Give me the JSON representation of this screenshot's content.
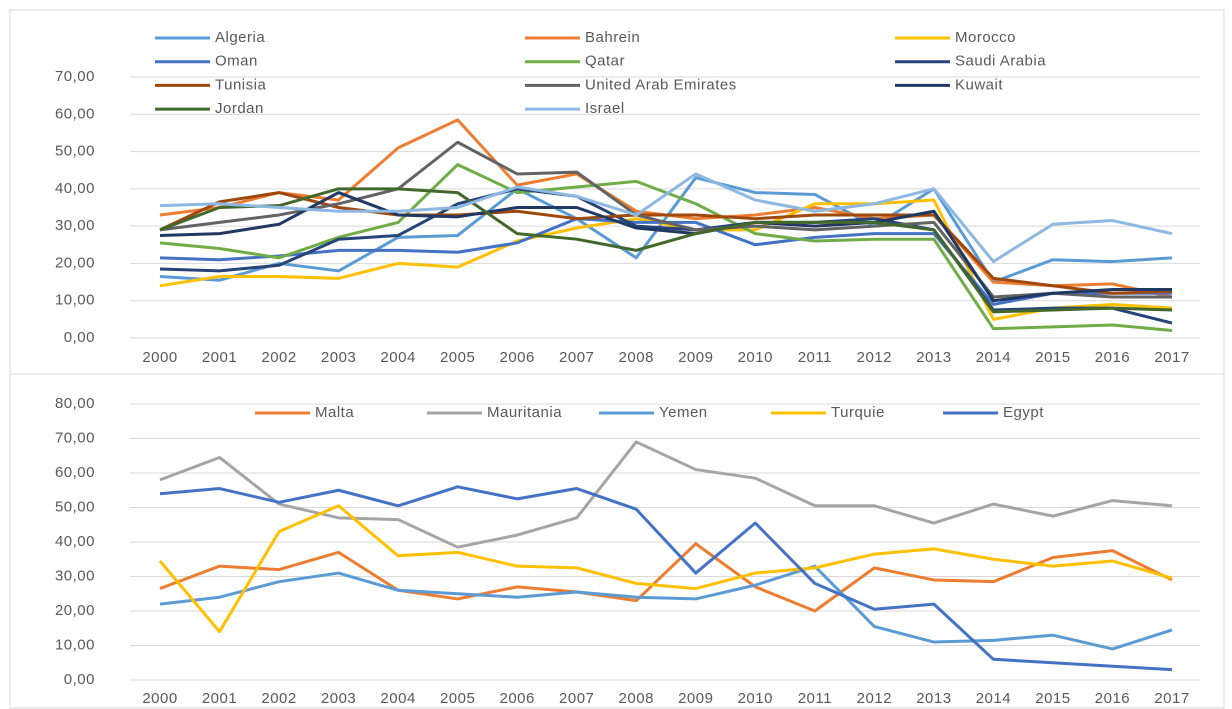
{
  "chart_data": [
    {
      "type": "line",
      "categories": [
        "2000",
        "2001",
        "2002",
        "2003",
        "2004",
        "2005",
        "2006",
        "2007",
        "2008",
        "2009",
        "2010",
        "2011",
        "2012",
        "2013",
        "2014",
        "2015",
        "2016",
        "2017"
      ],
      "ylim": [
        0,
        70
      ],
      "yticks": [
        {
          "value": 0,
          "label": "0,00"
        },
        {
          "value": 10,
          "label": "10,00"
        },
        {
          "value": 20,
          "label": "20,00"
        },
        {
          "value": 30,
          "label": "30,00"
        },
        {
          "value": 40,
          "label": "40,00"
        },
        {
          "value": 50,
          "label": "50,00"
        },
        {
          "value": 60,
          "label": "60,00"
        },
        {
          "value": 70,
          "label": "70,00"
        }
      ],
      "legend": "top",
      "series": [
        {
          "name": "Algeria",
          "color": "#5b9bd5",
          "values": [
            16.5,
            15.5,
            20,
            18,
            27,
            27.5,
            40,
            32,
            21.5,
            43,
            39,
            38.5,
            30,
            40,
            15,
            21,
            20.5,
            21.5
          ]
        },
        {
          "name": "Bahrein",
          "color": "#ed7d31",
          "values": [
            33,
            35,
            39,
            37,
            51,
            58.5,
            41,
            44,
            34,
            32,
            33,
            35,
            32,
            33,
            15,
            14,
            14.5,
            11
          ]
        },
        {
          "name": "Morocco",
          "color": "#ffc000",
          "values": [
            14,
            16.5,
            16.5,
            16,
            20,
            19,
            26,
            29.5,
            32,
            29,
            29,
            36,
            36,
            37,
            5,
            8,
            9,
            8
          ]
        },
        {
          "name": "Oman",
          "color": "#4472c4",
          "values": [
            21.5,
            21,
            22,
            23.5,
            23.5,
            23,
            25.5,
            32,
            31,
            31,
            25,
            27,
            28,
            28,
            9,
            12,
            12,
            12
          ]
        },
        {
          "name": "Qatar",
          "color": "#70ad47",
          "values": [
            25.5,
            24,
            21.5,
            27,
            31,
            46.5,
            39,
            40.5,
            42,
            36,
            28,
            26,
            26.5,
            26.5,
            2.5,
            3,
            3.5,
            2
          ]
        },
        {
          "name": "Saudi Arabia",
          "color": "#264478",
          "values": [
            18.5,
            18,
            19.5,
            26.5,
            27.5,
            36,
            40,
            38,
            30,
            29,
            31,
            31,
            32,
            29,
            7.5,
            8,
            8,
            4
          ]
        },
        {
          "name": "Tunisia",
          "color": "#9e480e",
          "values": [
            29,
            36.5,
            39,
            35,
            33,
            33,
            34,
            32,
            33,
            33,
            32,
            33,
            33,
            33,
            16,
            14,
            12,
            12.5
          ]
        },
        {
          "name": "United Arab Emirates",
          "color": "#636363",
          "values": [
            29,
            31,
            33,
            36,
            40,
            52.5,
            44,
            44.5,
            33,
            29,
            30,
            29,
            30,
            31,
            11,
            12,
            11,
            11
          ]
        },
        {
          "name": "Kuwait",
          "color": "#203864",
          "values": [
            27.5,
            28,
            30.5,
            39,
            33,
            32.5,
            35,
            35,
            29.5,
            28,
            31,
            30,
            31,
            34,
            10,
            12,
            13,
            13
          ]
        },
        {
          "name": "Jordan",
          "color": "#43682b",
          "values": [
            29,
            35,
            35.5,
            40,
            40,
            39,
            28,
            26.5,
            23.5,
            28,
            31,
            31,
            31,
            29,
            7,
            7.5,
            8,
            7.5
          ]
        },
        {
          "name": "Israel",
          "color": "#8cb8e2",
          "values": [
            35.5,
            36,
            35,
            34,
            34,
            35,
            40.5,
            38,
            33,
            44,
            37,
            34,
            36,
            40,
            20.5,
            30.5,
            31.5,
            28
          ]
        }
      ]
    },
    {
      "type": "line",
      "categories": [
        "2000",
        "2001",
        "2002",
        "2003",
        "2004",
        "2005",
        "2006",
        "2007",
        "2008",
        "2009",
        "2010",
        "2011",
        "2012",
        "2013",
        "2014",
        "2015",
        "2016",
        "2017"
      ],
      "ylim": [
        0,
        80
      ],
      "yticks": [
        {
          "value": 0,
          "label": "0,00"
        },
        {
          "value": 10,
          "label": "10,00"
        },
        {
          "value": 20,
          "label": "20,00"
        },
        {
          "value": 30,
          "label": "30,00"
        },
        {
          "value": 40,
          "label": "40,00"
        },
        {
          "value": 50,
          "label": "50,00"
        },
        {
          "value": 60,
          "label": "60,00"
        },
        {
          "value": 70,
          "label": "70,00"
        },
        {
          "value": 80,
          "label": "80,00"
        }
      ],
      "legend": "top",
      "series": [
        {
          "name": "Malta",
          "color": "#ed7d31",
          "values": [
            26.5,
            33,
            32,
            37,
            26,
            23.5,
            27,
            25.5,
            23,
            39.5,
            27,
            20,
            32.5,
            29,
            28.5,
            35.5,
            37.5,
            29
          ]
        },
        {
          "name": "Mauritania",
          "color": "#a5a5a5",
          "values": [
            58,
            64.5,
            51,
            47,
            46.5,
            38.5,
            42,
            47,
            69,
            61,
            58.5,
            50.5,
            50.5,
            45.5,
            51,
            47.5,
            52,
            50.5
          ]
        },
        {
          "name": "Yemen",
          "color": "#5b9bd5",
          "values": [
            22,
            24,
            28.5,
            31,
            26,
            25,
            24,
            25.5,
            24,
            23.5,
            27.5,
            33,
            15.5,
            11,
            11.5,
            13,
            9,
            14.5
          ]
        },
        {
          "name": "Turquie",
          "color": "#ffc000",
          "values": [
            34.5,
            14,
            43,
            50.5,
            36,
            37,
            33,
            32.5,
            28,
            26.5,
            31,
            32.5,
            36.5,
            38,
            35,
            33,
            34.5,
            29.5
          ]
        },
        {
          "name": "Egypt",
          "color": "#4472c4",
          "values": [
            54,
            55.5,
            51.5,
            55,
            50.5,
            56,
            52.5,
            55.5,
            49.5,
            31,
            45.5,
            28,
            20.5,
            22,
            6,
            5,
            4,
            3
          ]
        }
      ]
    }
  ]
}
